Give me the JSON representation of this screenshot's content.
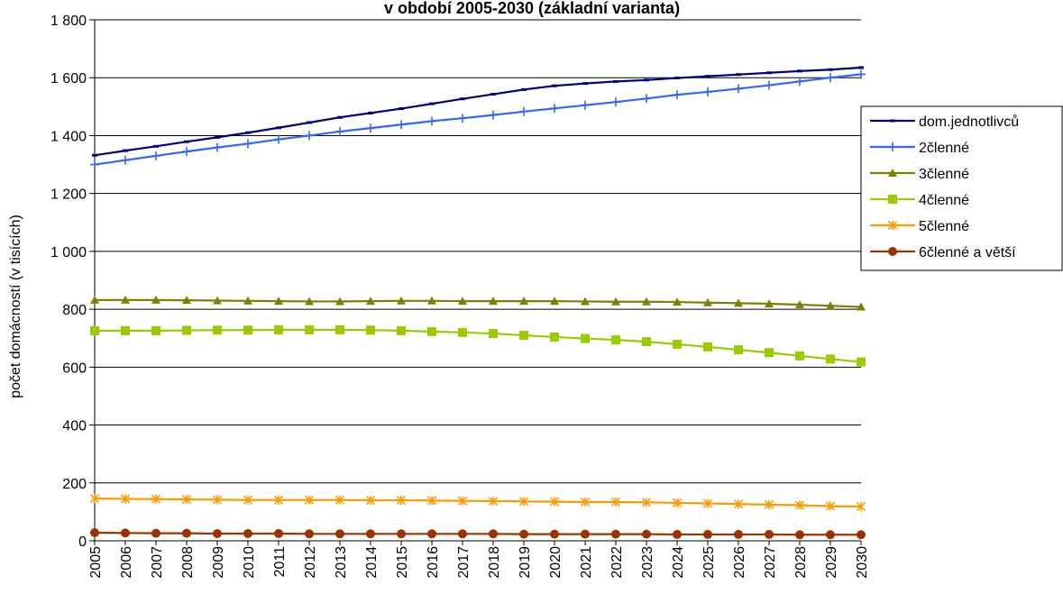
{
  "chart_data": {
    "type": "line",
    "title": "v období 2005-2030 (základní varianta)",
    "xlabel": "",
    "ylabel": "počet domácností (v tisících)",
    "x": [
      "2005",
      "2006",
      "2007",
      "2008",
      "2009",
      "2010",
      "2011",
      "2012",
      "2013",
      "2014",
      "2015",
      "2016",
      "2017",
      "2018",
      "2019",
      "2020",
      "2021",
      "2022",
      "2023",
      "2024",
      "2025",
      "2026",
      "2027",
      "2028",
      "2029",
      "2030"
    ],
    "ylim": [
      0,
      1800
    ],
    "yticks": [
      0,
      200,
      400,
      600,
      800,
      1000,
      1200,
      1400,
      1600,
      1800
    ],
    "ytick_labels": [
      "0",
      "200",
      "400",
      "600",
      "800",
      "1 000",
      "1 200",
      "1 400",
      "1 600",
      "1 800"
    ],
    "grid": "horizontal",
    "legend_position": "right",
    "series": [
      {
        "name": "dom.jednotlivců",
        "color": "#000080",
        "marker": "dash",
        "values": [
          1332,
          1348,
          1363,
          1379,
          1394,
          1410,
          1427,
          1445,
          1463,
          1478,
          1493,
          1510,
          1527,
          1543,
          1559,
          1572,
          1580,
          1587,
          1592,
          1599,
          1605,
          1611,
          1617,
          1623,
          1628,
          1635
        ]
      },
      {
        "name": "2členné",
        "color": "#3366FF",
        "marker": "plus",
        "values": [
          1300,
          1315,
          1330,
          1345,
          1359,
          1372,
          1387,
          1400,
          1414,
          1426,
          1438,
          1450,
          1460,
          1471,
          1483,
          1494,
          1505,
          1516,
          1528,
          1541,
          1551,
          1562,
          1574,
          1587,
          1600,
          1612
        ]
      },
      {
        "name": "3členné",
        "color": "#808000",
        "marker": "triangle",
        "values": [
          832,
          832,
          832,
          831,
          830,
          829,
          828,
          827,
          827,
          828,
          829,
          829,
          828,
          828,
          828,
          828,
          827,
          826,
          826,
          825,
          823,
          821,
          819,
          816,
          812,
          808
        ]
      },
      {
        "name": "4členné",
        "color": "#99CC00",
        "marker": "square",
        "values": [
          726,
          726,
          726,
          727,
          728,
          728,
          729,
          729,
          729,
          728,
          726,
          723,
          720,
          716,
          710,
          704,
          699,
          694,
          688,
          679,
          670,
          660,
          650,
          639,
          628,
          618
        ]
      },
      {
        "name": "5členné",
        "color": "#FF9900",
        "marker": "star",
        "values": [
          146,
          145,
          144,
          143,
          142,
          141,
          141,
          141,
          141,
          140,
          140,
          139,
          138,
          137,
          136,
          135,
          134,
          134,
          133,
          131,
          129,
          127,
          125,
          123,
          120,
          118
        ]
      },
      {
        "name": "6členné a větší",
        "color": "#993300",
        "marker": "circle",
        "values": [
          28,
          27,
          26,
          26,
          25,
          25,
          25,
          24,
          24,
          24,
          24,
          24,
          24,
          24,
          23,
          23,
          23,
          23,
          23,
          22,
          22,
          22,
          22,
          21,
          21,
          21
        ]
      }
    ]
  }
}
